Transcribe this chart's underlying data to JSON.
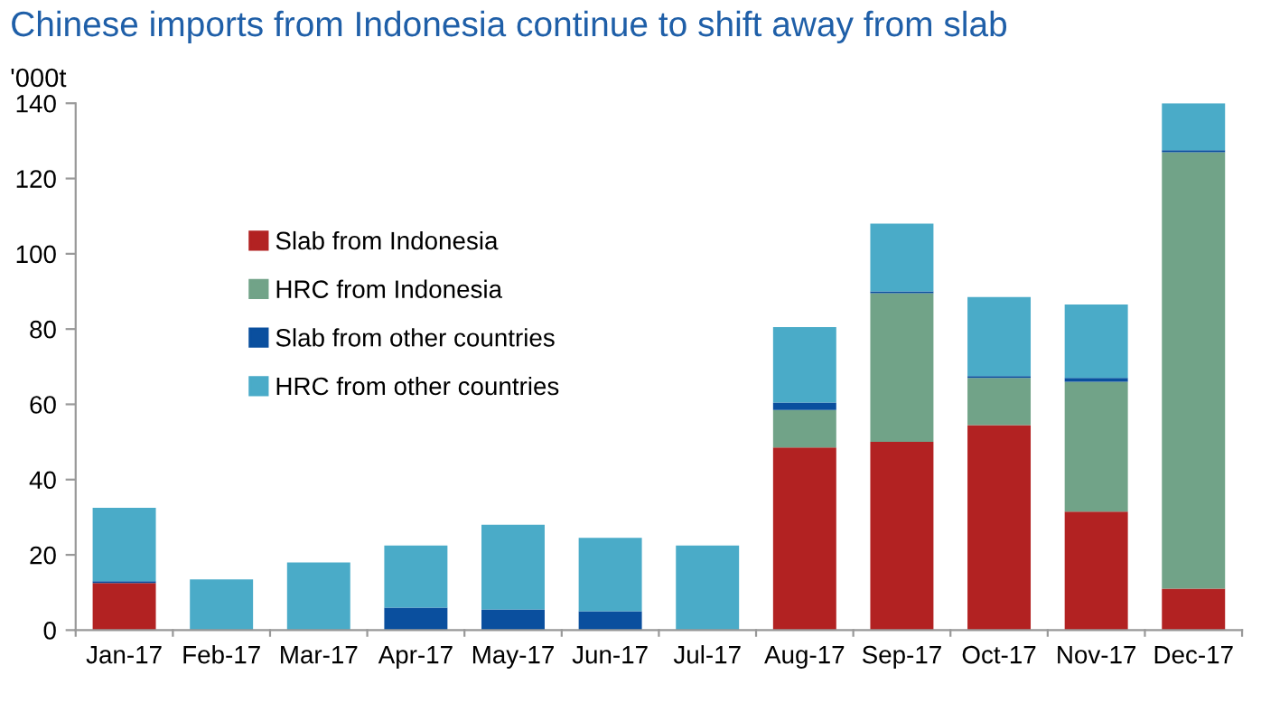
{
  "chart_data": {
    "type": "bar",
    "stacked": true,
    "title": "Chinese imports from Indonesia continue to shift away from slab",
    "ylabel": "'000t",
    "categories": [
      "Jan-17",
      "Feb-17",
      "Mar-17",
      "Apr-17",
      "May-17",
      "Jun-17",
      "Jul-17",
      "Aug-17",
      "Sep-17",
      "Oct-17",
      "Nov-17",
      "Dec-17"
    ],
    "series": [
      {
        "name": "Slab from Indonesia",
        "color": "#b22222",
        "values": [
          12.5,
          0,
          0,
          0,
          0,
          0,
          0,
          48.5,
          50,
          54.5,
          31.5,
          11
        ]
      },
      {
        "name": "HRC from Indonesia",
        "color": "#71a388",
        "values": [
          0,
          0,
          0,
          0,
          0,
          0,
          0,
          10,
          39.5,
          12.5,
          34.5,
          116
        ]
      },
      {
        "name": "Slab from other countries",
        "color": "#0a4f9e",
        "values": [
          0.5,
          0,
          0,
          6,
          5.5,
          5,
          0,
          2,
          0.5,
          0.5,
          1,
          0.5
        ]
      },
      {
        "name": "HRC from other countries",
        "color": "#4aabc8",
        "values": [
          19.5,
          13.5,
          18,
          16.5,
          22.5,
          19.5,
          22.5,
          20,
          18,
          21,
          19.5,
          12.5
        ]
      }
    ],
    "ylim": [
      0,
      140
    ],
    "yticks": [
      0,
      20,
      40,
      60,
      80,
      100,
      120,
      140
    ],
    "grid": false,
    "legend": "top left"
  }
}
